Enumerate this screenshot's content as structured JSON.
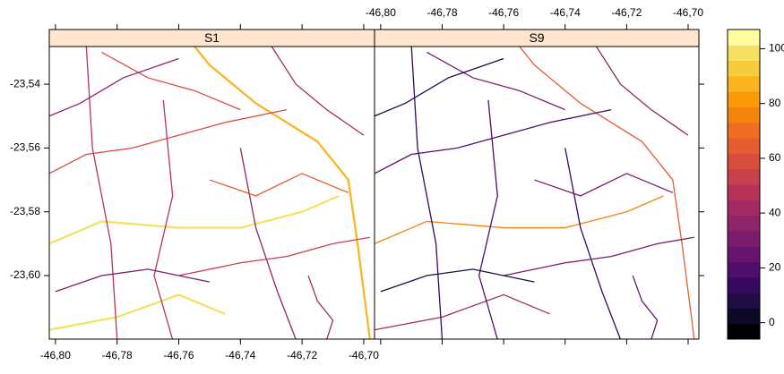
{
  "chart_data": {
    "type": "map",
    "panels": [
      {
        "title": "S1"
      },
      {
        "title": "S9"
      }
    ],
    "xlim": [
      -46.802,
      -46.6965
    ],
    "ylim": [
      -23.6199,
      -23.5282
    ],
    "xticks": [
      {
        "value": -46.8,
        "label": "-46,80"
      },
      {
        "value": -46.78,
        "label": "-46,78"
      },
      {
        "value": -46.76,
        "label": "-46,76"
      },
      {
        "value": -46.74,
        "label": "-46,74"
      },
      {
        "value": -46.72,
        "label": "-46,72"
      },
      {
        "value": -46.7,
        "label": "-46,70"
      }
    ],
    "yticks": [
      {
        "value": -23.54,
        "label": "-23,54"
      },
      {
        "value": -23.56,
        "label": "-23,56"
      },
      {
        "value": -23.58,
        "label": "-23,58"
      },
      {
        "value": -23.6,
        "label": "-23,60"
      }
    ],
    "zlim": [
      -6,
      107
    ],
    "zticks": [
      0,
      20,
      40,
      60,
      80,
      100
    ],
    "colors": [
      "#000004",
      "#0c0826",
      "#1e0c45",
      "#360961",
      "#4f0d6c",
      "#65156e",
      "#7b1d6c",
      "#8f2469",
      "#a32b63",
      "#b7335a",
      "#c83f4e",
      "#d84c3e",
      "#e55c30",
      "#f06e21",
      "#f7830f",
      "#fb9a06",
      "#fbb31e",
      "#f6cb3e",
      "#f4e061",
      "#ffffa0"
    ],
    "roads": [
      {
        "lon": [
          -46.755,
          -46.75,
          -46.735,
          -46.715,
          -46.705,
          -46.702,
          -46.698
        ],
        "lat": [
          -23.528,
          -23.534,
          -23.546,
          -23.558,
          -23.57,
          -23.59,
          -23.62
        ],
        "values": [
          85,
          62
        ]
      },
      {
        "lon": [
          -46.802,
          -46.785,
          -46.76,
          -46.74,
          -46.72,
          -46.708
        ],
        "lat": [
          -23.59,
          -23.583,
          -23.585,
          -23.585,
          -23.58,
          -23.575
        ],
        "values": [
          100,
          78
        ]
      },
      {
        "lon": [
          -46.802,
          -46.78,
          -46.76,
          -46.745
        ],
        "lat": [
          -23.617,
          -23.613,
          -23.606,
          -23.612
        ],
        "values": [
          100,
          42
        ]
      },
      {
        "lon": [
          -46.785,
          -46.77,
          -46.755,
          -46.74
        ],
        "lat": [
          -23.53,
          -23.538,
          -23.542,
          -23.548
        ],
        "values": [
          60,
          30
        ]
      },
      {
        "lon": [
          -46.802,
          -46.79,
          -46.775,
          -46.76,
          -46.745,
          -46.725
        ],
        "lat": [
          -23.568,
          -23.562,
          -23.56,
          -23.556,
          -23.552,
          -23.548
        ],
        "values": [
          58,
          22
        ]
      },
      {
        "lon": [
          -46.79,
          -46.788,
          -46.782,
          -46.78
        ],
        "lat": [
          -23.528,
          -23.56,
          -23.59,
          -23.62
        ],
        "values": [
          45,
          12
        ]
      },
      {
        "lon": [
          -46.765,
          -46.762,
          -46.768,
          -46.762
        ],
        "lat": [
          -23.545,
          -23.575,
          -23.6,
          -23.62
        ],
        "values": [
          50,
          20
        ]
      },
      {
        "lon": [
          -46.74,
          -46.735,
          -46.728,
          -46.722
        ],
        "lat": [
          -23.56,
          -23.585,
          -23.605,
          -23.62
        ],
        "values": [
          38,
          15
        ]
      },
      {
        "lon": [
          -46.76,
          -46.74,
          -46.725,
          -46.71,
          -46.698
        ],
        "lat": [
          -23.6,
          -23.596,
          -23.594,
          -23.59,
          -23.588
        ],
        "values": [
          55,
          28
        ]
      },
      {
        "lon": [
          -46.73,
          -46.722,
          -46.712,
          -46.7
        ],
        "lat": [
          -23.528,
          -23.54,
          -23.548,
          -23.556
        ],
        "values": [
          40,
          35
        ]
      },
      {
        "lon": [
          -46.802,
          -46.792,
          -46.778,
          -46.76
        ],
        "lat": [
          -23.55,
          -23.546,
          -23.538,
          -23.532
        ],
        "values": [
          35,
          10
        ]
      },
      {
        "lon": [
          -46.75,
          -46.735,
          -46.72,
          -46.705
        ],
        "lat": [
          -23.57,
          -23.575,
          -23.568,
          -23.574
        ],
        "values": [
          62,
          32
        ]
      },
      {
        "lon": [
          -46.8,
          -46.785,
          -46.77,
          -46.75
        ],
        "lat": [
          -23.605,
          -23.6,
          -23.598,
          -23.602
        ],
        "values": [
          30,
          8
        ]
      },
      {
        "lon": [
          -46.718,
          -46.715,
          -46.71,
          -46.712
        ],
        "lat": [
          -23.6,
          -23.608,
          -23.614,
          -23.62
        ],
        "values": [
          42,
          26
        ]
      }
    ]
  }
}
